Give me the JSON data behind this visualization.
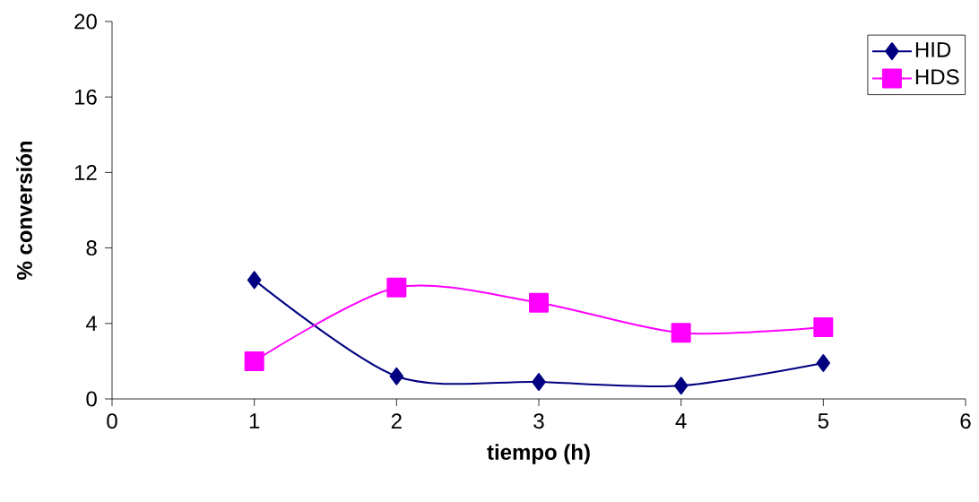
{
  "chart_data": {
    "type": "line",
    "xlabel": "tiempo (h)",
    "ylabel": "% conversión",
    "x": [
      1,
      2,
      3,
      4,
      5
    ],
    "series": [
      {
        "name": "HID",
        "color": "#000080",
        "marker": "diamond",
        "values": [
          6.3,
          1.2,
          0.9,
          0.7,
          1.9
        ]
      },
      {
        "name": "HDS",
        "color": "#ff00ff",
        "marker": "square",
        "values": [
          2.0,
          5.9,
          5.1,
          3.5,
          3.8
        ]
      }
    ],
    "xlim": [
      0,
      6
    ],
    "ylim": [
      0,
      20
    ],
    "xticks": [
      0,
      1,
      2,
      3,
      4,
      5,
      6
    ],
    "yticks": [
      0,
      4,
      8,
      12,
      16,
      20
    ],
    "legend": "top right",
    "grid": false,
    "line_style": "solid"
  }
}
